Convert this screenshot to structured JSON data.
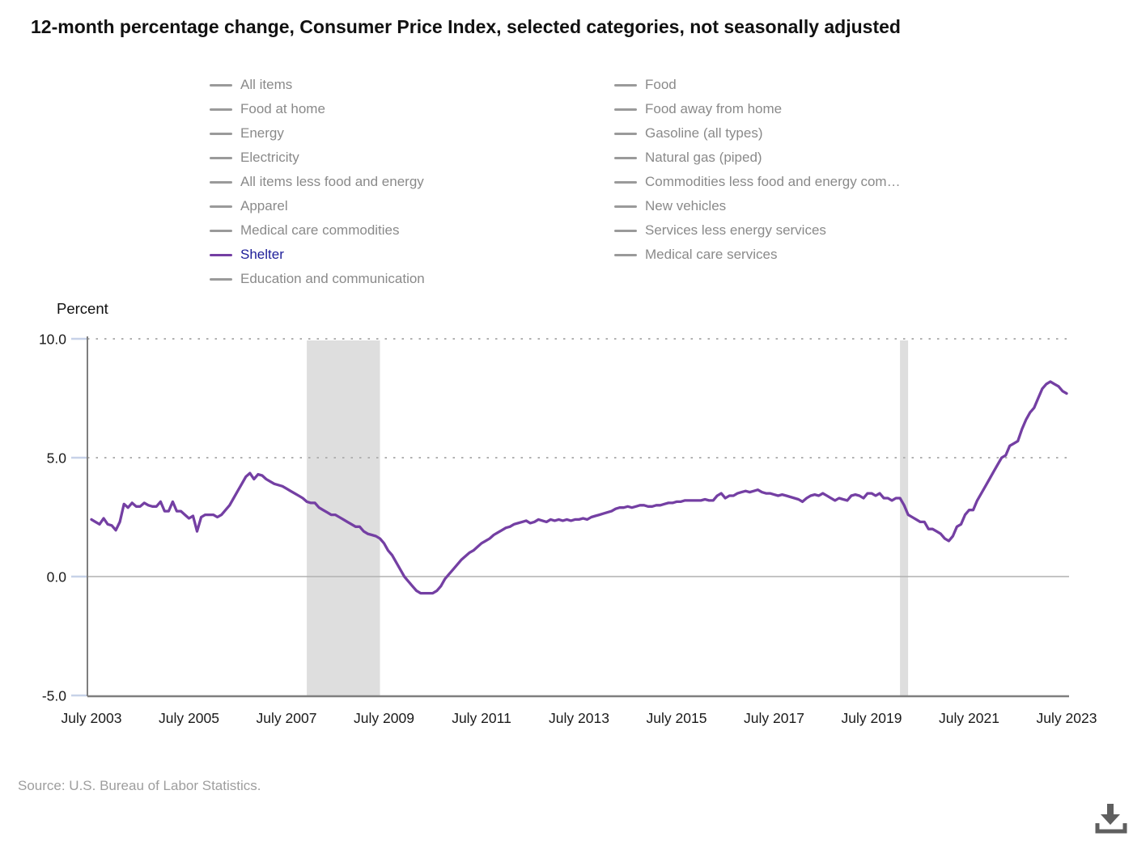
{
  "title": "12-month percentage change, Consumer Price Index, selected categories, not seasonally adjusted",
  "legend": {
    "left": [
      {
        "label": "All items",
        "active": false
      },
      {
        "label": "Food at home",
        "active": false
      },
      {
        "label": "Energy",
        "active": false
      },
      {
        "label": "Electricity",
        "active": false
      },
      {
        "label": "All items less food and energy",
        "active": false
      },
      {
        "label": "Apparel",
        "active": false
      },
      {
        "label": "Medical care commodities",
        "active": false
      },
      {
        "label": "Shelter",
        "active": true
      },
      {
        "label": "Education and communication",
        "active": false
      }
    ],
    "right": [
      {
        "label": "Food",
        "active": false
      },
      {
        "label": "Food away from home",
        "active": false
      },
      {
        "label": "Gasoline (all types)",
        "active": false
      },
      {
        "label": "Natural gas (piped)",
        "active": false
      },
      {
        "label": "Commodities less food and energy com…",
        "active": false
      },
      {
        "label": "New vehicles",
        "active": false
      },
      {
        "label": "Services less energy services",
        "active": false
      },
      {
        "label": "Medical care services",
        "active": false
      }
    ]
  },
  "chart_data": {
    "type": "line",
    "title": "12-month percentage change, Consumer Price Index, selected categories, not seasonally adjusted",
    "ylabel": "Percent",
    "ylim": [
      -5,
      10
    ],
    "y_ticks": [
      10.0,
      5.0,
      0.0,
      -5.0
    ],
    "y_tick_labels": [
      "10.0",
      "5.0",
      "0.0",
      "-5.0"
    ],
    "x_tick_labels": [
      "July 2003",
      "July 2005",
      "July 2007",
      "July 2009",
      "July 2011",
      "July 2013",
      "July 2015",
      "July 2017",
      "July 2019",
      "July 2021",
      "July 2023"
    ],
    "grid": "dotted horizontal above zero, solid zero line",
    "legend_position": "top, two columns",
    "recession_bands": [
      {
        "from": "2007-12",
        "to": "2009-06"
      },
      {
        "from": "2020-02",
        "to": "2020-04"
      }
    ],
    "series": [
      {
        "name": "Shelter",
        "color": "#743fa3",
        "start": "2003-07",
        "frequency": "monthly",
        "values": [
          2.4,
          2.3,
          2.2,
          2.45,
          2.2,
          2.15,
          1.95,
          2.3,
          3.05,
          2.9,
          3.1,
          2.95,
          2.95,
          3.1,
          3.0,
          2.95,
          2.95,
          3.15,
          2.75,
          2.75,
          3.15,
          2.75,
          2.75,
          2.6,
          2.45,
          2.55,
          1.9,
          2.5,
          2.6,
          2.6,
          2.6,
          2.5,
          2.6,
          2.8,
          3.0,
          3.3,
          3.6,
          3.9,
          4.2,
          4.35,
          4.1,
          4.3,
          4.25,
          4.1,
          4.0,
          3.9,
          3.85,
          3.8,
          3.7,
          3.6,
          3.5,
          3.4,
          3.3,
          3.15,
          3.1,
          3.1,
          2.9,
          2.8,
          2.7,
          2.6,
          2.6,
          2.5,
          2.4,
          2.3,
          2.2,
          2.1,
          2.1,
          1.9,
          1.8,
          1.75,
          1.7,
          1.6,
          1.4,
          1.1,
          0.9,
          0.6,
          0.3,
          0.0,
          -0.2,
          -0.4,
          -0.6,
          -0.7,
          -0.7,
          -0.7,
          -0.7,
          -0.6,
          -0.4,
          -0.1,
          0.1,
          0.3,
          0.5,
          0.7,
          0.85,
          1.0,
          1.1,
          1.25,
          1.4,
          1.5,
          1.6,
          1.75,
          1.85,
          1.95,
          2.05,
          2.1,
          2.2,
          2.25,
          2.3,
          2.35,
          2.25,
          2.3,
          2.4,
          2.35,
          2.3,
          2.4,
          2.35,
          2.4,
          2.35,
          2.4,
          2.35,
          2.4,
          2.4,
          2.45,
          2.4,
          2.5,
          2.55,
          2.6,
          2.65,
          2.7,
          2.75,
          2.85,
          2.9,
          2.9,
          2.95,
          2.9,
          2.95,
          3.0,
          3.0,
          2.95,
          2.95,
          3.0,
          3.0,
          3.05,
          3.1,
          3.1,
          3.15,
          3.15,
          3.2,
          3.2,
          3.2,
          3.2,
          3.2,
          3.25,
          3.2,
          3.2,
          3.4,
          3.5,
          3.3,
          3.4,
          3.4,
          3.5,
          3.55,
          3.6,
          3.55,
          3.6,
          3.65,
          3.55,
          3.5,
          3.5,
          3.45,
          3.4,
          3.45,
          3.4,
          3.35,
          3.3,
          3.25,
          3.15,
          3.3,
          3.4,
          3.45,
          3.4,
          3.5,
          3.4,
          3.3,
          3.2,
          3.3,
          3.25,
          3.2,
          3.4,
          3.45,
          3.4,
          3.3,
          3.5,
          3.5,
          3.4,
          3.5,
          3.3,
          3.3,
          3.2,
          3.3,
          3.3,
          3.0,
          2.6,
          2.5,
          2.4,
          2.3,
          2.3,
          2.0,
          2.0,
          1.9,
          1.8,
          1.6,
          1.5,
          1.7,
          2.1,
          2.2,
          2.6,
          2.8,
          2.8,
          3.2,
          3.5,
          3.8,
          4.1,
          4.4,
          4.7,
          5.0,
          5.1,
          5.5,
          5.6,
          5.7,
          6.2,
          6.6,
          6.9,
          7.1,
          7.5,
          7.9,
          8.1,
          8.2,
          8.1,
          8.0,
          7.8,
          7.7
        ]
      }
    ]
  },
  "source": "Source: U.S. Bureau of Labor Statistics.",
  "icons": {
    "download": "download-icon"
  },
  "colors": {
    "line": "#743fa3",
    "active_legend_text": "#1e1e99",
    "inactive_legend": "#9a9a9a",
    "recession_band": "#dedede",
    "gridline": "#b0b0b0",
    "axis": "#7f7f7f",
    "y_tick_mark": "#c7d2e8",
    "axis_text": "#1a1a1a",
    "source_text": "#9e9e9e",
    "download_icon": "#5f5f5f"
  }
}
